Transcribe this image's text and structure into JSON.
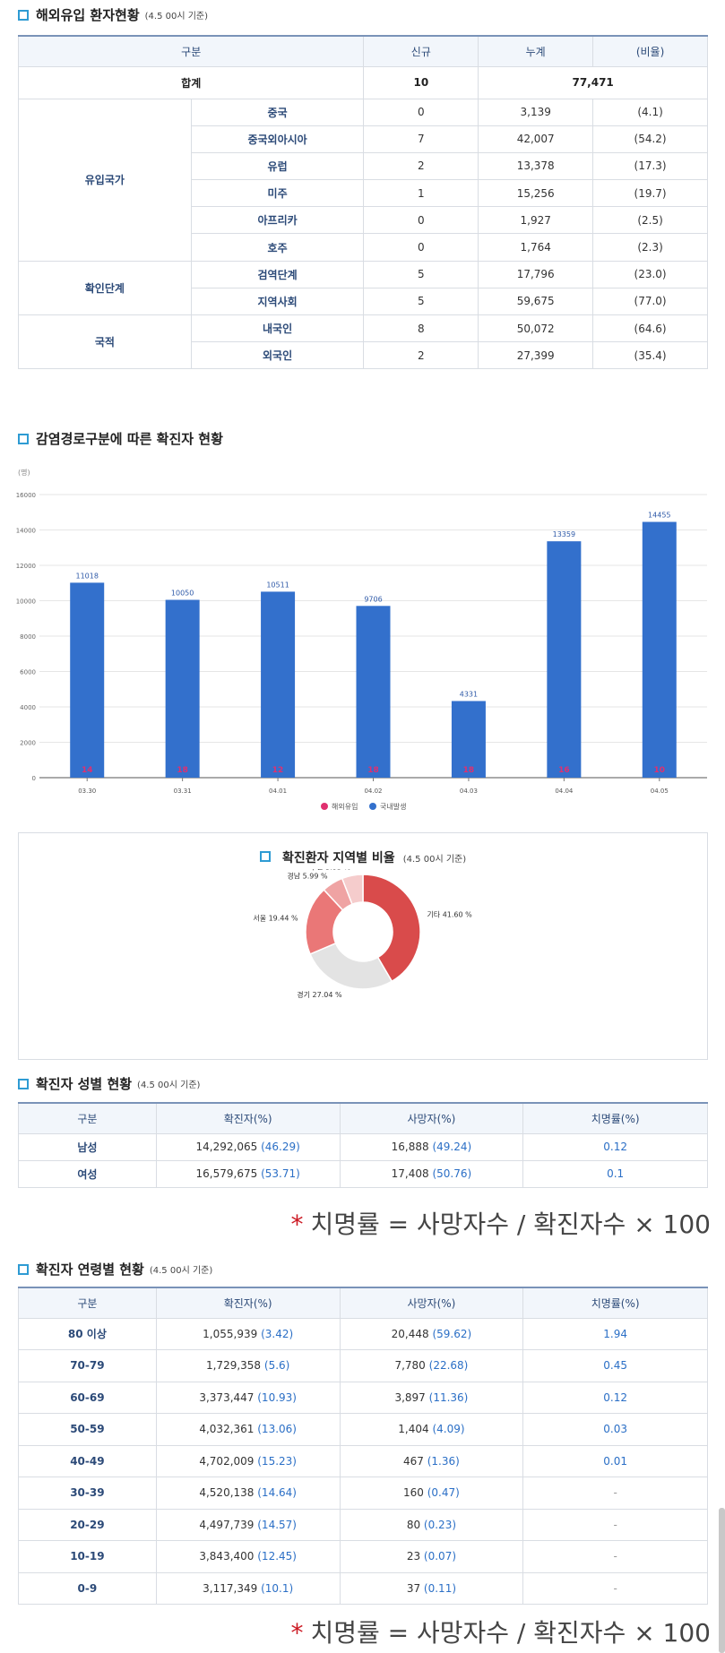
{
  "overseas": {
    "title": "해외유입 환자현황",
    "subtitle": "(4.5 00시 기준)",
    "headers": [
      "구분",
      "신규",
      "누계",
      "(비율)"
    ],
    "total": {
      "label": "합계",
      "new": "10",
      "cum": "77,471"
    },
    "groups": [
      {
        "name": "유입국가",
        "rows": [
          {
            "label": "중국",
            "new": "0",
            "cum": "3,139",
            "ratio": "(4.1)"
          },
          {
            "label": "중국외아시아",
            "new": "7",
            "cum": "42,007",
            "ratio": "(54.2)"
          },
          {
            "label": "유럽",
            "new": "2",
            "cum": "13,378",
            "ratio": "(17.3)"
          },
          {
            "label": "미주",
            "new": "1",
            "cum": "15,256",
            "ratio": "(19.7)"
          },
          {
            "label": "아프리카",
            "new": "0",
            "cum": "1,927",
            "ratio": "(2.5)"
          },
          {
            "label": "호주",
            "new": "0",
            "cum": "1,764",
            "ratio": "(2.3)"
          }
        ]
      },
      {
        "name": "확인단계",
        "rows": [
          {
            "label": "검역단계",
            "new": "5",
            "cum": "17,796",
            "ratio": "(23.0)"
          },
          {
            "label": "지역사회",
            "new": "5",
            "cum": "59,675",
            "ratio": "(77.0)"
          }
        ]
      },
      {
        "name": "국적",
        "rows": [
          {
            "label": "내국인",
            "new": "8",
            "cum": "50,072",
            "ratio": "(64.6)"
          },
          {
            "label": "외국인",
            "new": "2",
            "cum": "27,399",
            "ratio": "(35.4)"
          }
        ]
      }
    ]
  },
  "route": {
    "title": "감염경로구분에 따른 확진자 현황"
  },
  "chart_data": [
    {
      "type": "bar",
      "ylabel": "(명)",
      "ylim": [
        0,
        16000
      ],
      "yticks": [
        0,
        2000,
        4000,
        6000,
        8000,
        10000,
        12000,
        14000,
        16000
      ],
      "categories": [
        "03.30",
        "03.31",
        "04.01",
        "04.02",
        "04.03",
        "04.04",
        "04.05"
      ],
      "series": [
        {
          "name": "해외유입",
          "values": [
            14,
            18,
            12,
            18,
            18,
            16,
            10
          ],
          "color": "#e0306f"
        },
        {
          "name": "국내발생",
          "values": [
            11018,
            10050,
            10511,
            9706,
            4331,
            13359,
            14455
          ],
          "color": "#3370cc"
        }
      ],
      "legend": "bottom-center",
      "grid": true
    },
    {
      "type": "pie",
      "title": "확진환자 지역별 비율",
      "subtitle": "(4.5 00시 기준)",
      "slices": [
        {
          "label": "기타 41.60 %",
          "value": 41.6,
          "color": "#d94b4b"
        },
        {
          "label": "경기 27.04 %",
          "value": 27.04,
          "color": "#e3e3e3"
        },
        {
          "label": "서울 19.44 %",
          "value": 19.44,
          "color": "#ea7777"
        },
        {
          "label": "경남 5.99 %",
          "value": 5.99,
          "color": "#efa3a3"
        },
        {
          "label": "부산 5.93 %",
          "value": 5.93,
          "color": "#f5cccc"
        }
      ]
    }
  ],
  "gender": {
    "title": "확진자 성별 현황",
    "subtitle": "(4.5 00시 기준)",
    "headers": [
      "구분",
      "확진자(%)",
      "사망자(%)",
      "치명률(%)"
    ],
    "rows": [
      {
        "label": "남성",
        "conf": "14,292,065",
        "conf_pct": "(46.29)",
        "death": "16,888",
        "death_pct": "(49.24)",
        "fatal": "0.12"
      },
      {
        "label": "여성",
        "conf": "16,579,675",
        "conf_pct": "(53.71)",
        "death": "17,408",
        "death_pct": "(50.76)",
        "fatal": "0.1"
      }
    ]
  },
  "formula": {
    "star": "*",
    "text": "치명률 = 사망자수 / 확진자수 × 100"
  },
  "age": {
    "title": "확진자 연령별 현황",
    "subtitle": "(4.5 00시 기준)",
    "headers": [
      "구분",
      "확진자(%)",
      "사망자(%)",
      "치명률(%)"
    ],
    "rows": [
      {
        "label": "80 이상",
        "conf": "1,055,939",
        "conf_pct": "(3.42)",
        "death": "20,448",
        "death_pct": "(59.62)",
        "fatal": "1.94"
      },
      {
        "label": "70-79",
        "conf": "1,729,358",
        "conf_pct": "(5.6)",
        "death": "7,780",
        "death_pct": "(22.68)",
        "fatal": "0.45"
      },
      {
        "label": "60-69",
        "conf": "3,373,447",
        "conf_pct": "(10.93)",
        "death": "3,897",
        "death_pct": "(11.36)",
        "fatal": "0.12"
      },
      {
        "label": "50-59",
        "conf": "4,032,361",
        "conf_pct": "(13.06)",
        "death": "1,404",
        "death_pct": "(4.09)",
        "fatal": "0.03"
      },
      {
        "label": "40-49",
        "conf": "4,702,009",
        "conf_pct": "(15.23)",
        "death": "467",
        "death_pct": "(1.36)",
        "fatal": "0.01"
      },
      {
        "label": "30-39",
        "conf": "4,520,138",
        "conf_pct": "(14.64)",
        "death": "160",
        "death_pct": "(0.47)",
        "fatal": "-"
      },
      {
        "label": "20-29",
        "conf": "4,497,739",
        "conf_pct": "(14.57)",
        "death": "80",
        "death_pct": "(0.23)",
        "fatal": "-"
      },
      {
        "label": "10-19",
        "conf": "3,843,400",
        "conf_pct": "(12.45)",
        "death": "23",
        "death_pct": "(0.07)",
        "fatal": "-"
      },
      {
        "label": "0-9",
        "conf": "3,117,349",
        "conf_pct": "(10.1)",
        "death": "37",
        "death_pct": "(0.11)",
        "fatal": "-"
      }
    ]
  }
}
